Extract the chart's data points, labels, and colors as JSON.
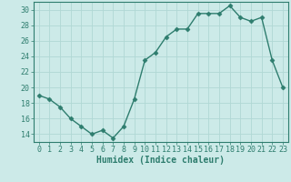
{
  "x": [
    0,
    1,
    2,
    3,
    4,
    5,
    6,
    7,
    8,
    9,
    10,
    11,
    12,
    13,
    14,
    15,
    16,
    17,
    18,
    19,
    20,
    21,
    22,
    23
  ],
  "y": [
    19,
    18.5,
    17.5,
    16,
    15,
    14,
    14.5,
    13.5,
    15,
    18.5,
    23.5,
    24.5,
    26.5,
    27.5,
    27.5,
    29.5,
    29.5,
    29.5,
    30.5,
    29,
    28.5,
    29,
    23.5,
    20
  ],
  "line_color": "#2e7d6e",
  "marker": "D",
  "marker_size": 2.5,
  "bg_color": "#cceae8",
  "grid_color": "#b0d8d4",
  "xlabel": "Humidex (Indice chaleur)",
  "xlim": [
    -0.5,
    23.5
  ],
  "ylim": [
    13,
    31
  ],
  "xticks": [
    0,
    1,
    2,
    3,
    4,
    5,
    6,
    7,
    8,
    9,
    10,
    11,
    12,
    13,
    14,
    15,
    16,
    17,
    18,
    19,
    20,
    21,
    22,
    23
  ],
  "yticks": [
    14,
    16,
    18,
    20,
    22,
    24,
    26,
    28,
    30
  ],
  "tick_color": "#2e7d6e",
  "xlabel_color": "#2e7d6e",
  "xlabel_fontsize": 7,
  "tick_fontsize": 6,
  "line_width": 1.0
}
